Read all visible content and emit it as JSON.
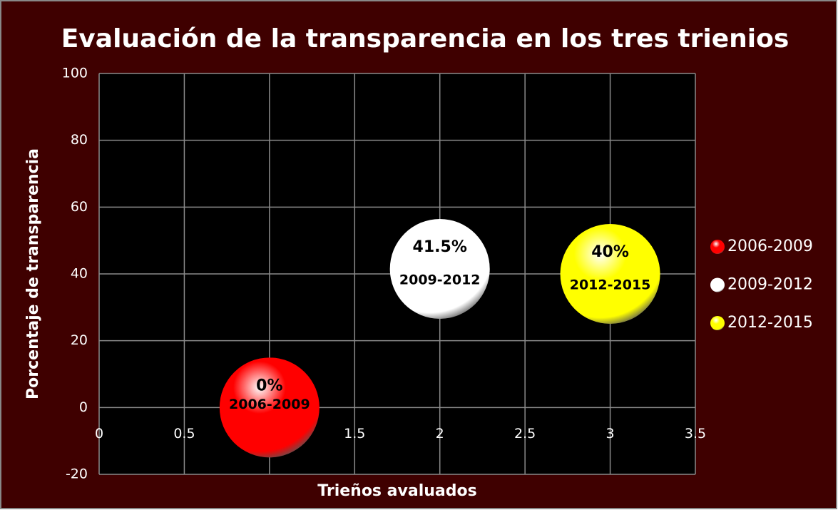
{
  "chart_data": {
    "type": "bubble",
    "title": "Evaluación de la transparencia en los tres trienios",
    "xlabel": "Trieños avaluados",
    "ylabel": "Porcentaje de transparencia",
    "xlim": [
      0,
      3.5
    ],
    "xticks": [
      0,
      0.5,
      1,
      1.5,
      2,
      2.5,
      3,
      3.5
    ],
    "ylim": [
      -20,
      100
    ],
    "yticks": [
      -20,
      0,
      20,
      40,
      60,
      80,
      100
    ],
    "grid": true,
    "legend": "right",
    "series": [
      {
        "name": "2006-2009",
        "color": "#ff0000",
        "x": [
          1
        ],
        "values": [
          0
        ],
        "value_labels": [
          "0%"
        ]
      },
      {
        "name": "2009-2012",
        "color": "#ffffff",
        "x": [
          2
        ],
        "values": [
          41.5
        ],
        "value_labels": [
          "41.5%"
        ]
      },
      {
        "name": "2012-2015",
        "color": "#ffff00",
        "x": [
          3
        ],
        "values": [
          40
        ],
        "value_labels": [
          "40%"
        ]
      }
    ]
  }
}
